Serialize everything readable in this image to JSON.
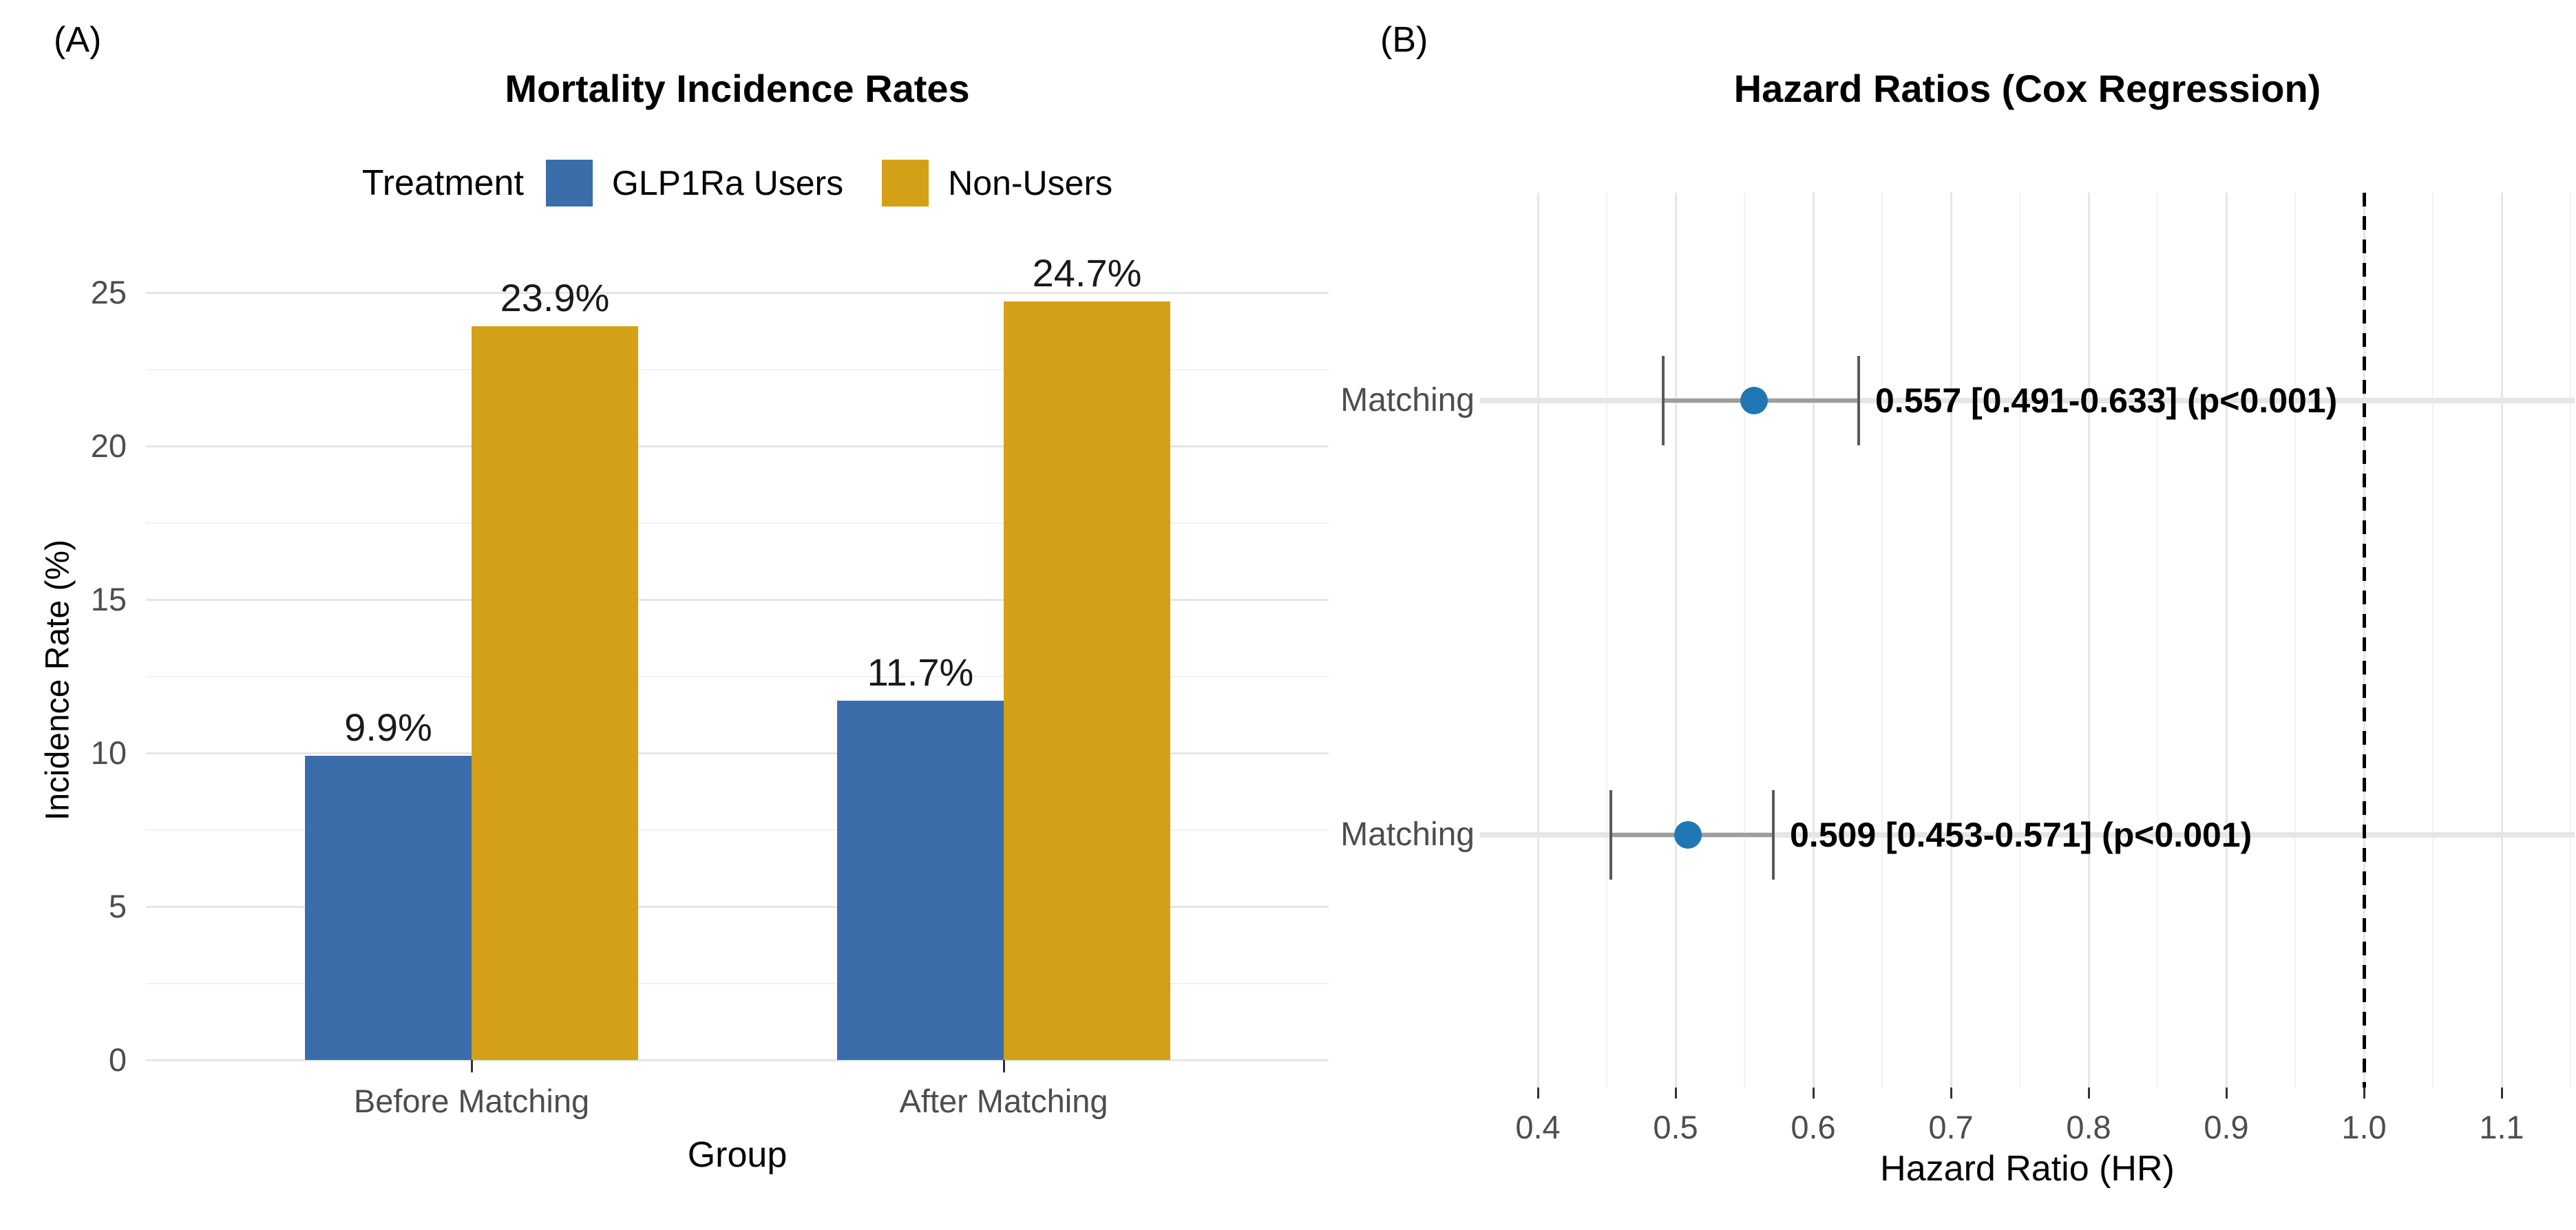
{
  "panel_a": {
    "panel_label": "(A)",
    "title": "Mortality Incidence Rates",
    "legend_title": "Treatment",
    "xlabel": "Group",
    "ylabel": "Incidence Rate (%)"
  },
  "panel_b": {
    "panel_label": "(B)",
    "title": "Hazard Ratios (Cox Regression)",
    "xlabel": "Hazard Ratio (HR)"
  },
  "chart_data": [
    {
      "panel": "A",
      "type": "bar",
      "title": "Mortality Incidence Rates",
      "categories": [
        "Before Matching",
        "After Matching"
      ],
      "series": [
        {
          "name": "GLP1Ra Users",
          "color": "#3B6DAB",
          "values": [
            9.9,
            11.7
          ],
          "value_labels": [
            "9.9%",
            "11.7%"
          ]
        },
        {
          "name": "Non-Users",
          "color": "#D4A017",
          "values": [
            23.9,
            24.7
          ],
          "value_labels": [
            "23.9%",
            "24.7%"
          ]
        }
      ],
      "xlabel": "Group",
      "ylabel": "Incidence Rate (%)",
      "ylim": [
        0,
        25
      ],
      "yticks": [
        0,
        5,
        10,
        15,
        20,
        25
      ],
      "yticks_minor": [
        2.5,
        7.5,
        12.5,
        17.5,
        22.5
      ],
      "legend_title": "Treatment",
      "legend_position": "top",
      "grid": true
    },
    {
      "panel": "B",
      "type": "scatter",
      "subtype": "forest",
      "title": "Hazard Ratios (Cox Regression)",
      "rows": [
        {
          "label": "Matching",
          "hr": 0.557,
          "ci_low": 0.491,
          "ci_high": 0.633,
          "annotation": "0.557 [0.491-0.633] (p<0.001)"
        },
        {
          "label": "Matching",
          "hr": 0.509,
          "ci_low": 0.453,
          "ci_high": 0.571,
          "annotation": "0.509 [0.453-0.571] (p<0.001)"
        }
      ],
      "xlabel": "Hazard Ratio (HR)",
      "xlim": [
        0.358,
        1.153
      ],
      "xticks": [
        0.4,
        0.5,
        0.6,
        0.7,
        0.8,
        0.9,
        1.0,
        1.1
      ],
      "reference_line": 1.0,
      "point_color": "#1F77B4",
      "errorbar_color": "#9E9E9E",
      "grid": true
    }
  ],
  "colors": {
    "bar_blue": "#3B6DAB",
    "bar_gold": "#D4A017",
    "point_blue": "#1F77B4",
    "grid_major": "#E6E6E6",
    "grid_minor": "#F2F2F2",
    "tick_text": "#4D4D4D",
    "reference_line": "#000000"
  }
}
